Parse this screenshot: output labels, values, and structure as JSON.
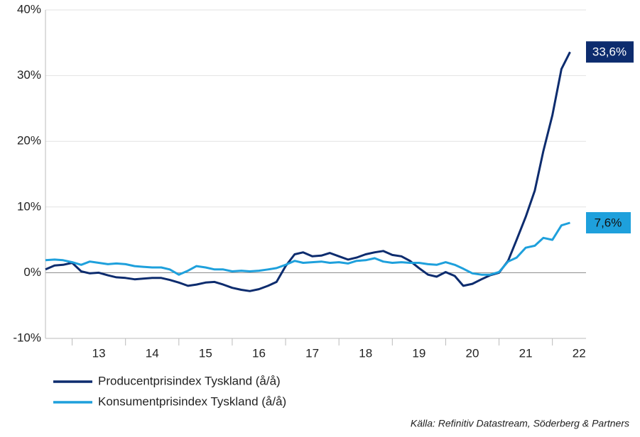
{
  "chart_data": {
    "type": "line",
    "source": "Källa: Refinitiv Datastream, Söderberg & Partners",
    "x": [
      12.0,
      12.17,
      12.33,
      12.5,
      12.67,
      12.83,
      13.0,
      13.17,
      13.33,
      13.5,
      13.67,
      13.83,
      14.0,
      14.17,
      14.33,
      14.5,
      14.67,
      14.83,
      15.0,
      15.17,
      15.33,
      15.5,
      15.67,
      15.83,
      16.0,
      16.17,
      16.33,
      16.5,
      16.67,
      16.83,
      17.0,
      17.17,
      17.33,
      17.5,
      17.67,
      17.83,
      18.0,
      18.17,
      18.33,
      18.5,
      18.67,
      18.83,
      19.0,
      19.17,
      19.33,
      19.5,
      19.67,
      19.83,
      20.0,
      20.17,
      20.33,
      20.5,
      20.67,
      20.83,
      21.0,
      21.17,
      21.33,
      21.5,
      21.67,
      21.83
    ],
    "series": [
      {
        "name": "Producentprisindex Tyskland (å/å)",
        "color": "#0d2c6e",
        "end_label": "33,6%",
        "values": [
          0.5,
          1.1,
          1.2,
          1.5,
          0.2,
          -0.1,
          0.0,
          -0.4,
          -0.7,
          -0.8,
          -1.0,
          -0.9,
          -0.8,
          -0.8,
          -1.1,
          -1.5,
          -2.0,
          -1.8,
          -1.5,
          -1.4,
          -1.8,
          -2.3,
          -2.6,
          -2.8,
          -2.5,
          -2.0,
          -1.4,
          1.0,
          2.8,
          3.1,
          2.5,
          2.6,
          3.0,
          2.5,
          2.0,
          2.3,
          2.8,
          3.1,
          3.3,
          2.7,
          2.5,
          1.8,
          0.7,
          -0.3,
          -0.6,
          0.1,
          -0.5,
          -2.0,
          -1.7,
          -1.0,
          -0.4,
          0.0,
          1.8,
          5.0,
          8.5,
          12.5,
          18.5,
          24.0,
          31.0,
          33.6
        ]
      },
      {
        "name": "Konsumentprisindex Tyskland (å/å)",
        "color": "#1ea0dc",
        "end_label": "7,6%",
        "values": [
          1.9,
          2.0,
          1.9,
          1.6,
          1.2,
          1.7,
          1.5,
          1.3,
          1.4,
          1.3,
          1.0,
          0.9,
          0.8,
          0.8,
          0.5,
          -0.3,
          0.3,
          1.0,
          0.8,
          0.5,
          0.5,
          0.2,
          0.3,
          0.2,
          0.3,
          0.5,
          0.7,
          1.2,
          1.8,
          1.5,
          1.6,
          1.7,
          1.5,
          1.6,
          1.4,
          1.8,
          1.9,
          2.2,
          1.7,
          1.5,
          1.6,
          1.5,
          1.5,
          1.3,
          1.2,
          1.6,
          1.2,
          0.6,
          -0.1,
          -0.3,
          -0.3,
          0.1,
          1.7,
          2.3,
          3.8,
          4.1,
          5.3,
          5.0,
          7.2,
          7.6
        ]
      }
    ],
    "xlim": [
      12.0,
      22.13
    ],
    "xticks": [
      13,
      14,
      15,
      16,
      17,
      18,
      19,
      20,
      21,
      22
    ],
    "ylim": [
      -10,
      40
    ],
    "yticks": [
      {
        "value": -10,
        "label": "-10%"
      },
      {
        "value": 0,
        "label": "0%"
      },
      {
        "value": 10,
        "label": "10%"
      },
      {
        "value": 20,
        "label": "20%"
      },
      {
        "value": 30,
        "label": "30%"
      },
      {
        "value": 40,
        "label": "40%"
      }
    ],
    "grid": true
  }
}
